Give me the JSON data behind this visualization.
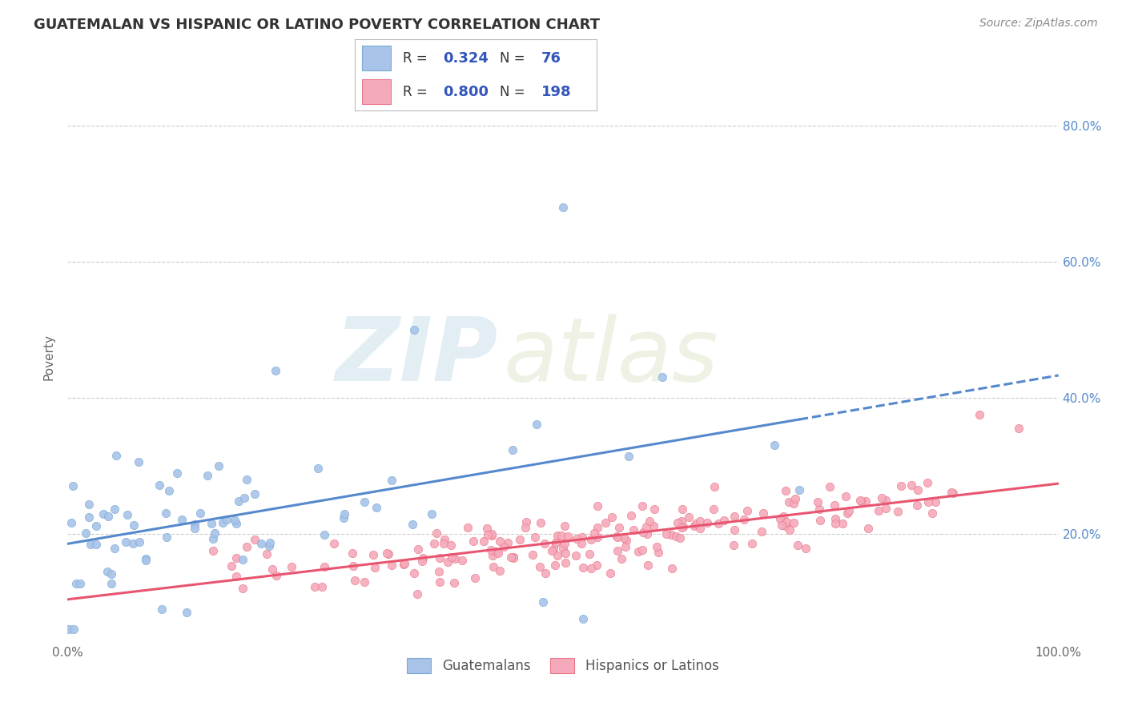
{
  "title": "GUATEMALAN VS HISPANIC OR LATINO POVERTY CORRELATION CHART",
  "title_color": "#333333",
  "source_text": "Source: ZipAtlas.com",
  "ylabel": "Poverty",
  "xlim": [
    0,
    1
  ],
  "ylim": [
    0.04,
    0.88
  ],
  "ytick_labels": [
    "20.0%",
    "40.0%",
    "60.0%",
    "80.0%"
  ],
  "ytick_positions": [
    0.2,
    0.4,
    0.6,
    0.8
  ],
  "legend_r1": "0.324",
  "legend_n1": "76",
  "legend_r2": "0.800",
  "legend_n2": "198",
  "blue_scatter_color": "#a8c4e8",
  "blue_edge_color": "#7aaad4",
  "pink_scatter_color": "#f5aabb",
  "pink_edge_color": "#e8788a",
  "line_blue_color": "#5588cc",
  "line_pink_color": "#e85570",
  "legend_text_color": "#3355bb",
  "background_color": "#ffffff",
  "grid_color": "#cccccc",
  "title_fontsize": 13,
  "source_fontsize": 10,
  "axis_label_fontsize": 11,
  "tick_fontsize": 11
}
